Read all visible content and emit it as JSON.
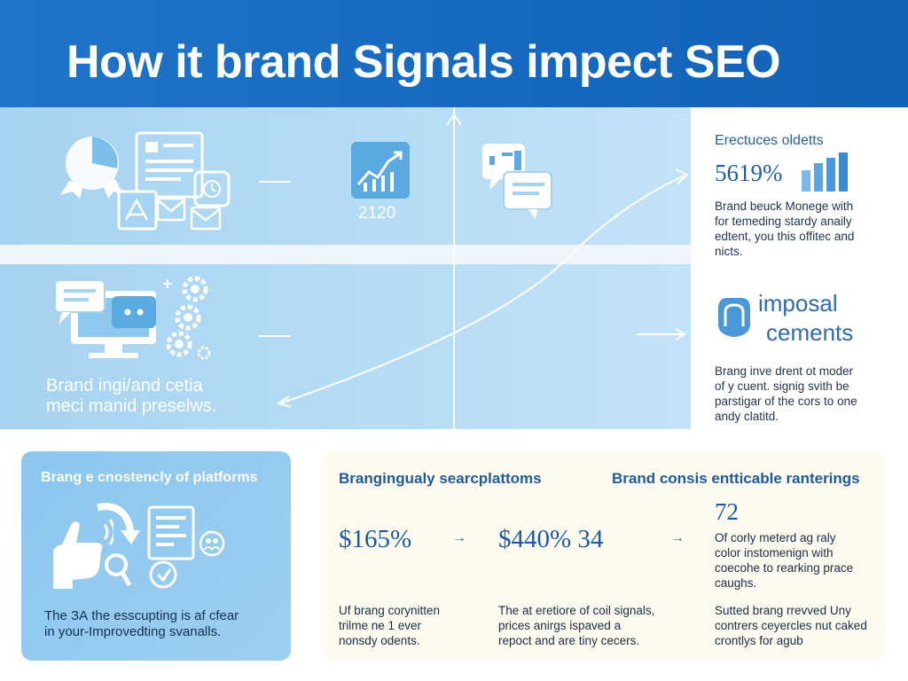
{
  "header": {
    "title": "How it brand Signals impect SEO"
  },
  "row1": {
    "year": "2120",
    "right": {
      "heading": "Erectuces oldetts",
      "stat": "5619%",
      "body": [
        "Brand beuck Monege with",
        "for temeding stardy anaily",
        "edtent, you this offitec and",
        "nicts."
      ]
    }
  },
  "row2": {
    "label": [
      "Brand ingi/and cetia",
      "meci manid preselws."
    ],
    "right": {
      "title_line1": "imposal",
      "title_line2": "cements",
      "body": [
        "Brang inve drent ot moder",
        "of y cuent. signig svith be",
        "parstigar of the cors to one",
        "andy clatitd."
      ]
    }
  },
  "card_left": {
    "title": "Brang e cnostencly of platforms",
    "body": [
      "The ЗА the esscupting is af cfear",
      "in your-Improvedting svanalls."
    ]
  },
  "card_right": {
    "title_a": "Brangingualy searcplattoms",
    "title_b": "Brand consis entticable ranterings",
    "stat1": "$165%",
    "stat2": "$440% 34",
    "stat3": "72",
    "arrow": "→",
    "stat3_body": [
      "Of corly meterd ag raly",
      "color instomenign with",
      "coecohe to rearking prace",
      "caughs."
    ],
    "bottom1": [
      "Uf brang corynitten",
      "trilme ne 1 ever",
      "nonsdy odents."
    ],
    "bottom2": [
      "The at eretiore of coil signals,",
      "prices anirgs ispaved a",
      "repoct and are tiny cecers."
    ],
    "bottom3": [
      "Sutted brang rrevved Uny",
      "contrers ceyercles nut caked",
      "crontlys for agub"
    ]
  },
  "colors": {
    "header": "#1668bf",
    "band": "#b7ddf5",
    "card_left": "#95cbef",
    "card_right": "#fdfaf0",
    "accent_text": "#1e5b9e"
  },
  "icons": [
    "pie-chart-icon",
    "document-icon",
    "image-icon",
    "mail-icon",
    "clock-icon",
    "line-chart-icon",
    "chat-bubbles-icon",
    "bar-chart-icon",
    "computer-chat-icon",
    "gears-icon",
    "shield-icon",
    "hand-icon",
    "magnifier-icon",
    "report-icon",
    "people-icon",
    "curved-arrow-icon"
  ]
}
